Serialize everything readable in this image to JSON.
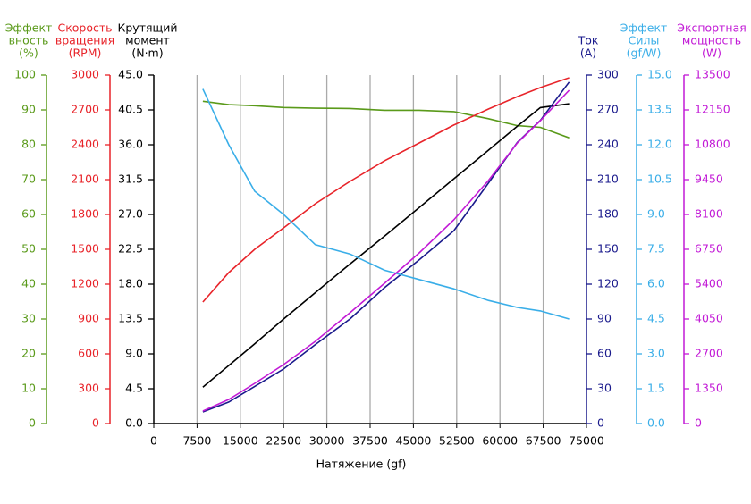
{
  "chart_data": {
    "type": "line",
    "x_label": "Натяжение (gf)",
    "x": [
      8500,
      13000,
      17500,
      22500,
      28000,
      34000,
      40000,
      46000,
      52000,
      58000,
      63000,
      67000,
      72000
    ],
    "xlim": [
      0,
      75000
    ],
    "xticks": [
      0,
      7500,
      15000,
      22500,
      30000,
      37500,
      45000,
      52500,
      60000,
      67500,
      75000
    ],
    "grid": true,
    "y_axes": [
      {
        "title": [
          "Эффект",
          "вность",
          "(%)"
        ],
        "color": "#5a9a1a",
        "ylim": [
          0,
          100
        ],
        "yticks": [
          0,
          10,
          20,
          30,
          40,
          50,
          60,
          70,
          80,
          90,
          100
        ],
        "values": [
          92.5,
          91.5,
          91.2,
          90.7,
          90.5,
          90.4,
          89.9,
          89.9,
          89.5,
          87.5,
          85.5,
          85,
          82
        ]
      },
      {
        "title": [
          "Скорость",
          "вращения",
          "(RPM)"
        ],
        "color": "#e8242a",
        "ylim": [
          0,
          3000
        ],
        "yticks": [
          0,
          300,
          600,
          900,
          1200,
          1500,
          1800,
          2100,
          2400,
          2700,
          3000
        ],
        "values": [
          1046,
          1300,
          1500,
          1685,
          1892,
          2085,
          2262,
          2415,
          2570,
          2708,
          2815,
          2892,
          2977
        ]
      },
      {
        "title": [
          "Крутящий",
          "момент",
          "(N·m)"
        ],
        "color": "#000000",
        "ylim": [
          0,
          45
        ],
        "yticks": [
          {
            "value": 0,
            "label": "0.0"
          },
          4.5,
          {
            "value": 9,
            "label": "9.0"
          },
          13.5,
          {
            "value": 18,
            "label": "18.0"
          },
          22.5,
          {
            "value": 27,
            "label": "27.0"
          },
          31.5,
          {
            "value": 36,
            "label": "36.0"
          },
          40.5,
          {
            "value": 45,
            "label": "45.0"
          }
        ],
        "values": [
          4.7,
          7.5,
          10.3,
          13.5,
          16.9,
          20.6,
          24.2,
          27.9,
          31.6,
          35.3,
          38.4,
          40.8,
          41.3
        ]
      },
      {
        "title": [
          "Ток",
          "(A)"
        ],
        "color": "#1a1a8c",
        "ylim": [
          0,
          300
        ],
        "yticks": [
          0,
          30,
          60,
          90,
          120,
          150,
          180,
          210,
          240,
          270,
          300
        ],
        "values": [
          10,
          18.5,
          32,
          47,
          68,
          90,
          117,
          141,
          166,
          207,
          242,
          261,
          294
        ]
      },
      {
        "title": [
          "Эффект",
          "Силы",
          "(gf/W)"
        ],
        "color": "#3aaee8",
        "ylim": [
          0,
          15
        ],
        "yticks": [
          {
            "value": 0,
            "label": "0.0"
          },
          1.5,
          {
            "value": 3,
            "label": "3.0"
          },
          4.5,
          {
            "value": 6,
            "label": "6.0"
          },
          7.5,
          {
            "value": 9,
            "label": "9.0"
          },
          10.5,
          {
            "value": 12,
            "label": "12.0"
          },
          13.5,
          {
            "value": 15,
            "label": "15.0"
          }
        ],
        "values": [
          14.4,
          12.0,
          10.0,
          9.0,
          7.7,
          7.3,
          6.6,
          6.2,
          5.8,
          5.3,
          5.0,
          4.85,
          4.5
        ]
      },
      {
        "title": [
          "Экспортная",
          "мощность",
          "(W)"
        ],
        "color": "#c21ad6",
        "ylim": [
          0,
          13500
        ],
        "yticks": [
          0,
          1350,
          2700,
          4050,
          5400,
          6750,
          8100,
          9450,
          10800,
          12150,
          13500
        ],
        "values": [
          485,
          935,
          1558,
          2285,
          3185,
          4292,
          5435,
          6612,
          7892,
          9415,
          10869,
          11735,
          12912
        ]
      }
    ]
  }
}
